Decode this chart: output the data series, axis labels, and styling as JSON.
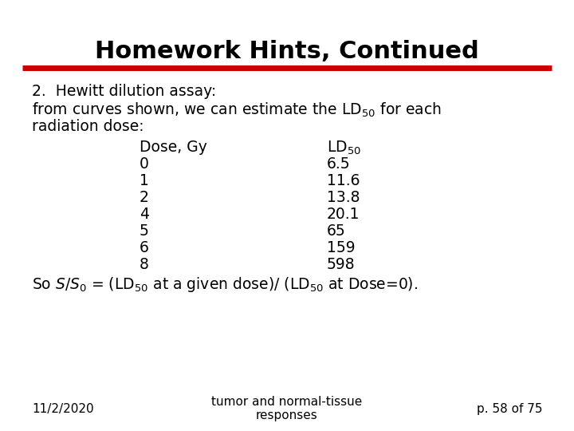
{
  "title": "Homework Hints, Continued",
  "title_fontsize": 22,
  "title_fontweight": "bold",
  "title_color": "#000000",
  "red_line_color": "#cc0000",
  "background_color": "#ffffff",
  "body_fontsize": 13.5,
  "doses": [
    "0",
    "1",
    "2",
    "4",
    "5",
    "6",
    "8"
  ],
  "ld50s": [
    "6.5",
    "11.6",
    "13.8",
    "20.1",
    "65",
    "159",
    "598"
  ],
  "footer_left": "11/2/2020",
  "footer_center": "tumor and normal-tissue\nresponses",
  "footer_right": "p. 58 of 75",
  "footer_fontsize": 11
}
